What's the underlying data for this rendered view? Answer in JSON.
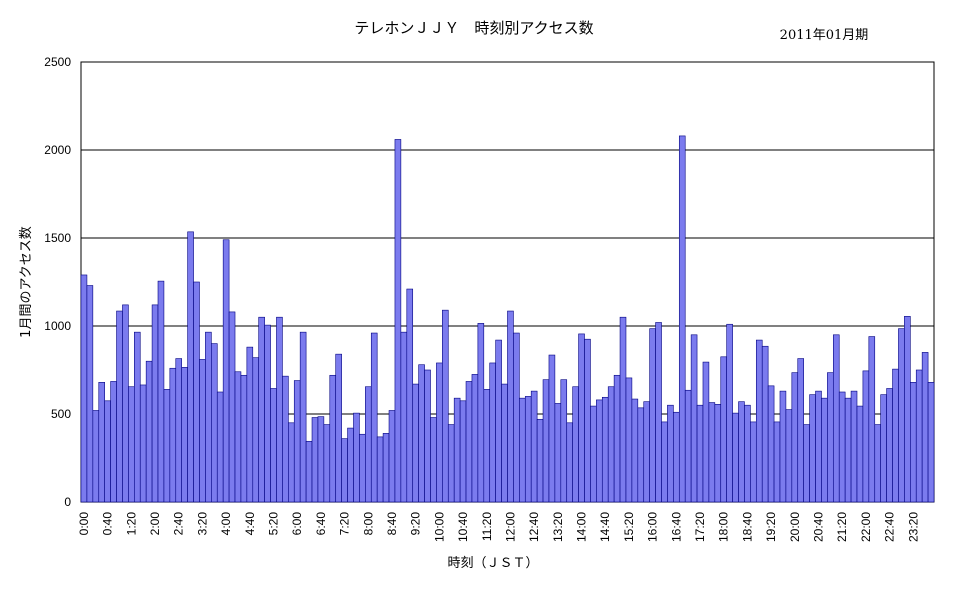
{
  "chart_data": {
    "type": "bar",
    "title": "テレホンＪＪＹ　時刻別アクセス数",
    "period_label": "2011年01月期",
    "xlabel": "時刻（ＪＳＴ）",
    "ylabel": "1月間のアクセス数",
    "ylim": [
      0,
      2500
    ],
    "yticks": [
      0,
      500,
      1000,
      1500,
      2000,
      2500
    ],
    "grid": true,
    "x_tick_labels": [
      "0:00",
      "0:40",
      "1:20",
      "2:00",
      "2:40",
      "3:20",
      "4:00",
      "4:40",
      "5:20",
      "6:00",
      "6:40",
      "7:20",
      "8:00",
      "8:40",
      "9:20",
      "10:00",
      "10:40",
      "11:20",
      "12:00",
      "12:40",
      "13:20",
      "14:00",
      "14:40",
      "15:20",
      "16:00",
      "16:40",
      "17:20",
      "18:00",
      "18:40",
      "19:20",
      "20:00",
      "20:40",
      "21:20",
      "22:00",
      "22:40",
      "23:20"
    ],
    "x_tick_interval_minutes": 40,
    "bin_minutes": 10,
    "categories_start": "0:00",
    "values": [
      1290,
      1230,
      520,
      680,
      575,
      685,
      1085,
      1120,
      655,
      965,
      665,
      800,
      1120,
      1255,
      640,
      760,
      815,
      765,
      1535,
      1250,
      810,
      965,
      900,
      625,
      1490,
      1080,
      740,
      720,
      880,
      820,
      1050,
      1005,
      645,
      1050,
      715,
      450,
      690,
      965,
      345,
      480,
      485,
      440,
      720,
      840,
      360,
      420,
      505,
      385,
      655,
      960,
      370,
      390,
      520,
      2060,
      965,
      1210,
      670,
      780,
      750,
      480,
      790,
      1090,
      440,
      590,
      575,
      685,
      725,
      1015,
      640,
      790,
      920,
      670,
      1085,
      960,
      590,
      600,
      630,
      470,
      695,
      835,
      560,
      695,
      450,
      655,
      955,
      925,
      545,
      580,
      595,
      655,
      720,
      1050,
      705,
      585,
      535,
      570,
      985,
      1020,
      455,
      550,
      510,
      2080,
      635,
      950,
      550,
      795,
      565,
      555,
      825,
      1010,
      505,
      570,
      550,
      455,
      920,
      885,
      660,
      455,
      630,
      525,
      735,
      815,
      440,
      610,
      630,
      590,
      735,
      950,
      625,
      590,
      630,
      545,
      745,
      940,
      440,
      610,
      645,
      755,
      985,
      1055,
      680,
      750,
      850,
      680
    ]
  }
}
